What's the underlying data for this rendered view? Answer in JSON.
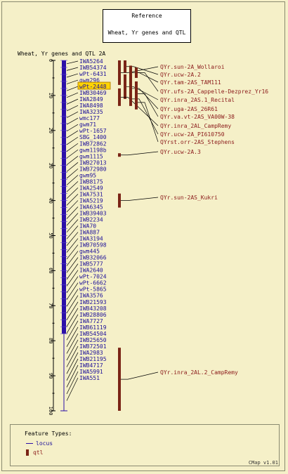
{
  "reference": {
    "title": "Reference",
    "subtitle": "Wheat, Yr genes and QTL"
  },
  "map": {
    "title": "Wheat, Yr genes and QTL 2A",
    "ticks": [
      "0",
      "10",
      "20",
      "30",
      "40",
      "50",
      "60",
      "70",
      "80",
      "90",
      "100"
    ],
    "colors": {
      "chromosome": "#2b0fa8",
      "marker_label": "#1c0f9a",
      "qtl": "#7a2416",
      "qtl_label": "#8b1a1a",
      "highlight_bg": "#ffd400",
      "highlight_border": "#b8860b"
    },
    "markers": [
      {
        "name": "IWA5264",
        "pos": 0.5
      },
      {
        "name": "IWB54374",
        "pos": 1.5
      },
      {
        "name": "wPt-6431",
        "pos": 2.5
      },
      {
        "name": "gwm296",
        "pos": 3.5
      },
      {
        "name": "wPt-2448",
        "pos": 4.5,
        "highlight": true
      },
      {
        "name": "IWB30469",
        "pos": 5.5
      },
      {
        "name": "IWA2849",
        "pos": 6.5
      },
      {
        "name": "IWA8498",
        "pos": 7.5
      },
      {
        "name": "IWA3235",
        "pos": 8.5
      },
      {
        "name": "wmc177",
        "pos": 9.5
      },
      {
        "name": "gwm71",
        "pos": 10.5
      },
      {
        "name": "wPt-1657",
        "pos": 11.5
      },
      {
        "name": "SBG_1400",
        "pos": 12.5
      },
      {
        "name": "IWB72862",
        "pos": 13.5
      },
      {
        "name": "gwm1198b",
        "pos": 14.5
      },
      {
        "name": "gwm1115",
        "pos": 15.5
      },
      {
        "name": "IWB27013",
        "pos": 16.5
      },
      {
        "name": "IWB72980",
        "pos": 17.5
      },
      {
        "name": "gwm95",
        "pos": 18.5
      },
      {
        "name": "IWB8175",
        "pos": 19.5
      },
      {
        "name": "IWA2549",
        "pos": 20.5
      },
      {
        "name": "IWA7531",
        "pos": 21.5
      },
      {
        "name": "IWA5219",
        "pos": 22.5
      },
      {
        "name": "IWA6345",
        "pos": 23.5
      },
      {
        "name": "IWB39403",
        "pos": 24.5
      },
      {
        "name": "IWB2234",
        "pos": 25.5
      },
      {
        "name": "IWA70",
        "pos": 26.5
      },
      {
        "name": "IWA887",
        "pos": 27.5
      },
      {
        "name": "IWA3194",
        "pos": 28.5
      },
      {
        "name": "IWB70598",
        "pos": 29.5
      },
      {
        "name": "gwm445",
        "pos": 30.5
      },
      {
        "name": "IWB32066",
        "pos": 31.5
      },
      {
        "name": "IWB5777",
        "pos": 32.5
      },
      {
        "name": "IWA2640",
        "pos": 33.5
      },
      {
        "name": "wPt-7024",
        "pos": 34.5
      },
      {
        "name": "wPt-6662",
        "pos": 35.5
      },
      {
        "name": "wPt-5865",
        "pos": 36.5
      },
      {
        "name": "IWA3576",
        "pos": 37.5
      },
      {
        "name": "IWB21593",
        "pos": 38.5
      },
      {
        "name": "IWB43208",
        "pos": 39.5
      },
      {
        "name": "IWB28806",
        "pos": 40.5
      },
      {
        "name": "IWA7727",
        "pos": 41.5
      },
      {
        "name": "IWB61119",
        "pos": 42.5
      },
      {
        "name": "IWB54504",
        "pos": 43.5
      },
      {
        "name": "IWB25650",
        "pos": 44.5
      },
      {
        "name": "IWB72501",
        "pos": 45.5
      },
      {
        "name": "IWA2983",
        "pos": 46.5
      },
      {
        "name": "IWB21195",
        "pos": 47.5
      },
      {
        "name": "IWB4717",
        "pos": 48.5
      },
      {
        "name": "IWA5991",
        "pos": 49.5
      },
      {
        "name": "IWA551",
        "pos": 50.5
      }
    ],
    "qtls": [
      {
        "name": "QYr.sun-2A_Wollaroi",
        "start": 0,
        "end": 7,
        "lane": 0
      },
      {
        "name": "QYr.ucw-2A.2",
        "start": 0,
        "end": 3.5,
        "lane": 1
      },
      {
        "name": "QYr.tam-2AS_TAM111",
        "start": 1.5,
        "end": 5.5,
        "lane": 2
      },
      {
        "name": "QYr.ufs-2A_Cappelle-Dezprez_Yr16",
        "start": 2,
        "end": 5,
        "lane": 3
      },
      {
        "name": "QYr.inra_2AS.1_Recital",
        "start": 4,
        "end": 11,
        "lane": 1
      },
      {
        "name": "QYr.uga-2AS_26R61",
        "start": 5,
        "end": 11,
        "lane": 2
      },
      {
        "name": "QYr.va.vt-2AS_VA00W-38",
        "start": 6,
        "end": 13,
        "lane": 3
      },
      {
        "name": "QYr.inra_2AL_CampRemy",
        "start": 8,
        "end": 13,
        "lane": 0
      },
      {
        "name": "QYr.ucw-2A_PI610750",
        "start": 9,
        "end": 13,
        "lane": 2
      },
      {
        "name": "QYrst.orr-2AS_Stephens",
        "start": 10,
        "end": 14,
        "lane": 3
      },
      {
        "name": "QYr.ucw-2A.3",
        "start": 26.5,
        "end": 27.5,
        "lane": 0
      },
      {
        "name": "QYr.sun-2AS_Kukri",
        "start": 38,
        "end": 42,
        "lane": 0
      },
      {
        "name": "QYr.inra_2AL.2_CampRemy",
        "start": 82,
        "end": 100,
        "lane": 0
      }
    ]
  },
  "legend": {
    "title": "Feature Types:",
    "locus": "locus",
    "qtl": "qtl"
  },
  "footer": "CMap v1.01"
}
